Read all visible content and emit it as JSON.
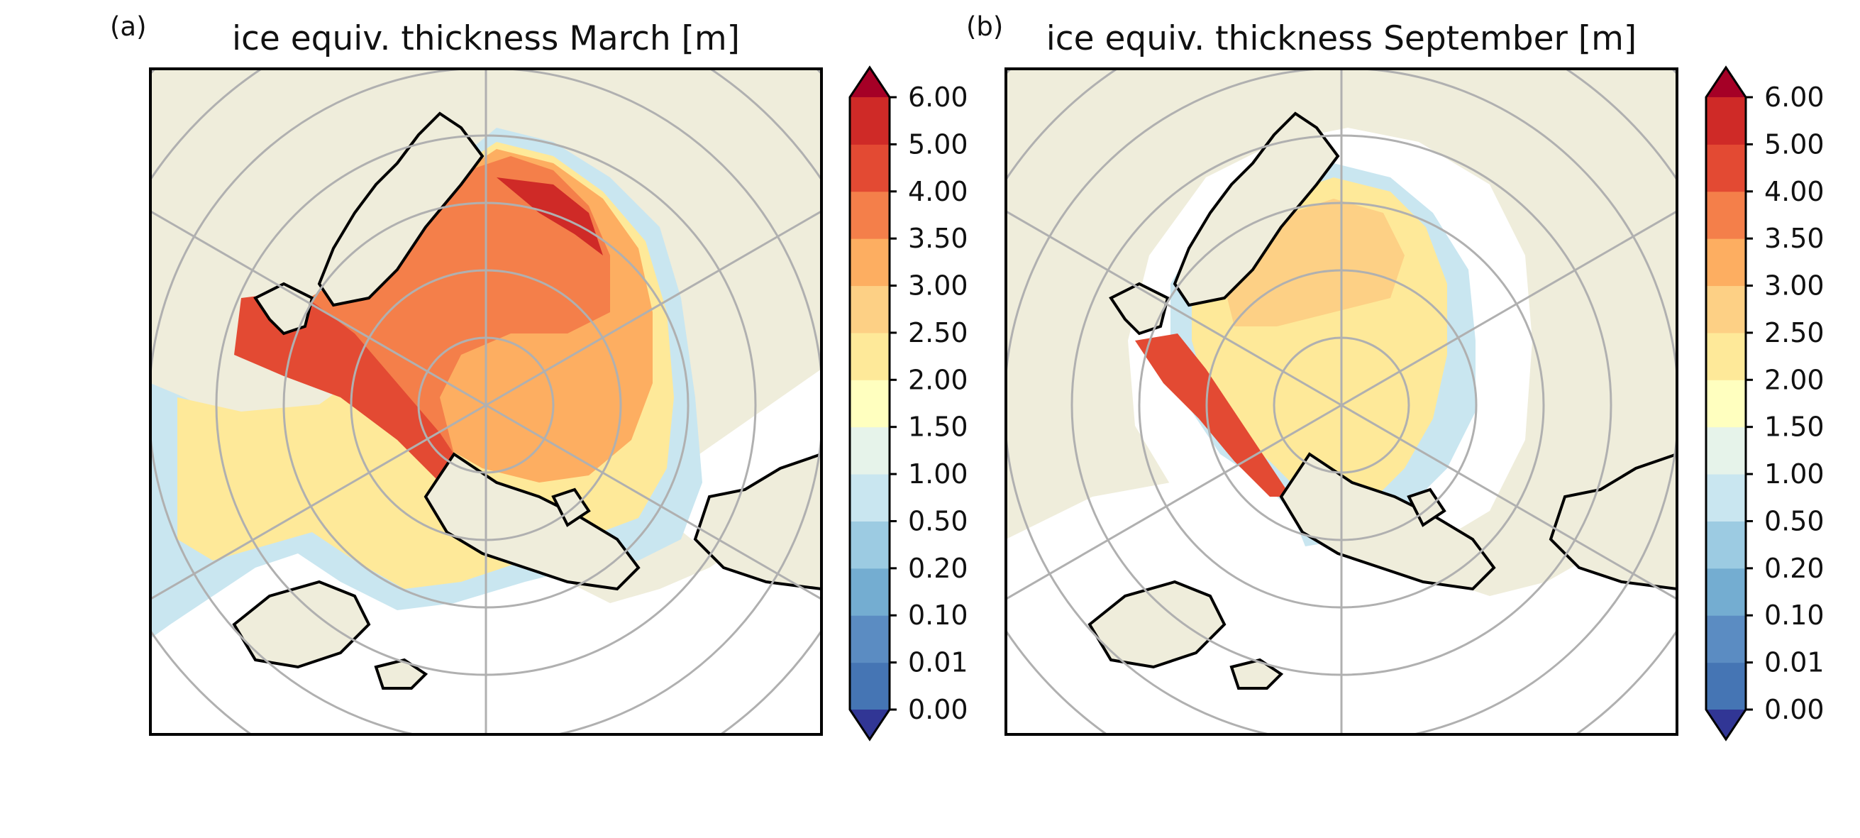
{
  "panels": [
    {
      "label": "(a)",
      "title": "ice equiv. thickness March [m]"
    },
    {
      "label": "(b)",
      "title": "ice equiv. thickness September [m]"
    }
  ],
  "colorbar": {
    "ticks": [
      "0.00",
      "0.01",
      "0.10",
      "0.20",
      "0.50",
      "1.00",
      "1.50",
      "2.00",
      "2.50",
      "3.00",
      "3.50",
      "4.00",
      "5.00",
      "6.00"
    ],
    "colors": [
      "#4575b4",
      "#5b8cc2",
      "#74add1",
      "#9ccbe2",
      "#c9e6f0",
      "#e6f3ea",
      "#ffffbf",
      "#fee999",
      "#fdd085",
      "#fdae61",
      "#f47f4a",
      "#e34a33",
      "#cf2a27"
    ],
    "under_color": "#313695",
    "over_color": "#a50026"
  },
  "colors": {
    "land": "#efeddb",
    "ocean_no_ice": "#ffffff",
    "graticule": "#b0b0b0",
    "coastline": "#000000"
  }
}
